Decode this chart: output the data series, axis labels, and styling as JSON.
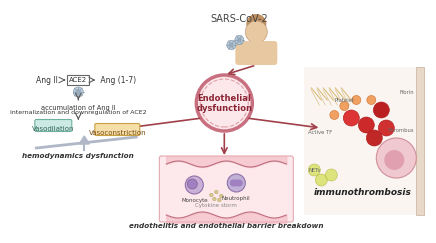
{
  "bg_color": "#ffffff",
  "title": "SARS-CoV-2",
  "center_circle_fill": "#fce8ea",
  "center_circle_edge": "#c97080",
  "arrow_color": "#a0404a",
  "scale_color": "#b0b8c8",
  "left_text1": "Ang II ",
  "left_ace2": "ACE2",
  "left_text1b": " Ang (1-7)",
  "left_text2": "accumulation of Ang II",
  "left_text3": "internalization and downregulation of ACE2",
  "balance_left": "Vasodilation",
  "balance_right": "Vasoconstriction",
  "hemo_label": "hemodynamics dysfunction",
  "bottom_text": "endothelitis and endothelial barrier breakdown",
  "right_text": "immunothrombosis",
  "label_fibrin": "Fibrin",
  "label_platelet": "Platelet",
  "label_activetf": "Active TF",
  "label_thrombus": "Thrombus",
  "label_nets": "NETs",
  "monocyte_label": "Monocyte",
  "neutrophil_label": "Neutrophil",
  "cytokine_label": "Cytokine storm",
  "person_skin": "#e8c8a0",
  "person_hair": "#c09060"
}
